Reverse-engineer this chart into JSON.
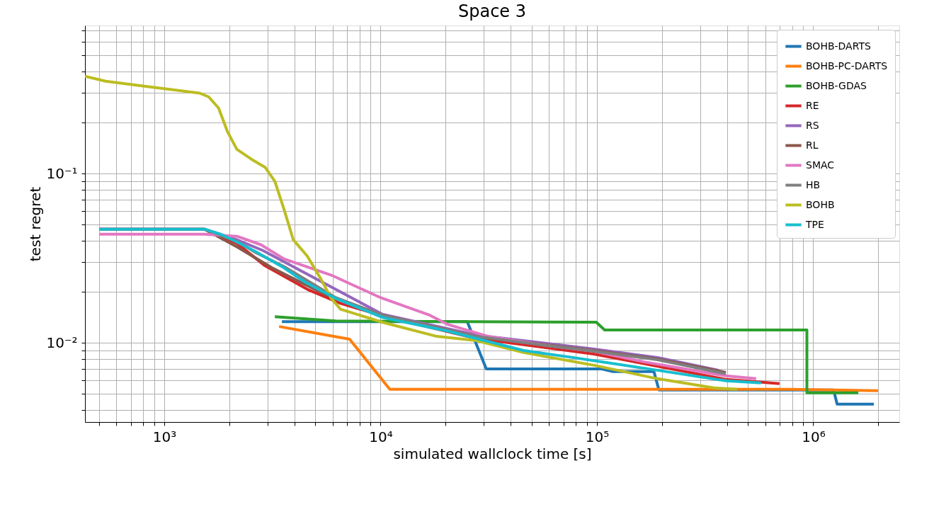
{
  "chart_data": {
    "type": "line",
    "title": "Space 3",
    "xlabel": "simulated wallclock time [s]",
    "ylabel": "test regret",
    "log": "xy",
    "grid": true,
    "legend": "top right",
    "marker": "none",
    "line_style": "solid",
    "xlim": [
      430,
      2500000
    ],
    "ylim": [
      0.0034,
      0.75
    ],
    "xticks": [
      {
        "value": 500,
        "label": null
      },
      {
        "value": 600,
        "label": null
      },
      {
        "value": 700,
        "label": null
      },
      {
        "value": 800,
        "label": null
      },
      {
        "value": 900,
        "label": null
      },
      {
        "value": 1000,
        "label": "10³"
      },
      {
        "value": 2000,
        "label": null
      },
      {
        "value": 3000,
        "label": null
      },
      {
        "value": 4000,
        "label": null
      },
      {
        "value": 5000,
        "label": null
      },
      {
        "value": 6000,
        "label": null
      },
      {
        "value": 7000,
        "label": null
      },
      {
        "value": 8000,
        "label": null
      },
      {
        "value": 9000,
        "label": null
      },
      {
        "value": 10000,
        "label": "10⁴"
      },
      {
        "value": 20000,
        "label": null
      },
      {
        "value": 30000,
        "label": null
      },
      {
        "value": 40000,
        "label": null
      },
      {
        "value": 50000,
        "label": null
      },
      {
        "value": 60000,
        "label": null
      },
      {
        "value": 70000,
        "label": null
      },
      {
        "value": 80000,
        "label": null
      },
      {
        "value": 90000,
        "label": null
      },
      {
        "value": 100000,
        "label": "10⁵"
      },
      {
        "value": 200000,
        "label": null
      },
      {
        "value": 300000,
        "label": null
      },
      {
        "value": 400000,
        "label": null
      },
      {
        "value": 500000,
        "label": null
      },
      {
        "value": 600000,
        "label": null
      },
      {
        "value": 700000,
        "label": null
      },
      {
        "value": 800000,
        "label": null
      },
      {
        "value": 900000,
        "label": null
      },
      {
        "value": 1000000,
        "label": "10⁶"
      },
      {
        "value": 2000000,
        "label": null
      }
    ],
    "yticks": [
      {
        "value": 0.004,
        "label": null
      },
      {
        "value": 0.005,
        "label": null
      },
      {
        "value": 0.006,
        "label": null
      },
      {
        "value": 0.007,
        "label": null
      },
      {
        "value": 0.008,
        "label": null
      },
      {
        "value": 0.009,
        "label": null
      },
      {
        "value": 0.01,
        "label": "10⁻²"
      },
      {
        "value": 0.02,
        "label": null
      },
      {
        "value": 0.03,
        "label": null
      },
      {
        "value": 0.04,
        "label": null
      },
      {
        "value": 0.05,
        "label": null
      },
      {
        "value": 0.06,
        "label": null
      },
      {
        "value": 0.07,
        "label": null
      },
      {
        "value": 0.08,
        "label": null
      },
      {
        "value": 0.09,
        "label": null
      },
      {
        "value": 0.1,
        "label": "10⁻¹"
      },
      {
        "value": 0.2,
        "label": null
      },
      {
        "value": 0.3,
        "label": null
      },
      {
        "value": 0.4,
        "label": null
      },
      {
        "value": 0.5,
        "label": null
      },
      {
        "value": 0.6,
        "label": null
      },
      {
        "value": 0.7,
        "label": null
      }
    ],
    "series": [
      {
        "name": "BOHB-DARTS",
        "color": "#1f77b4",
        "x": [
          3499,
          25160,
          30800,
          104600,
          118800,
          183500,
          193500,
          1242000,
          1290000,
          1906000
        ],
        "values": [
          0.01334,
          0.01334,
          0.00701,
          0.00701,
          0.00675,
          0.00675,
          0.00526,
          0.00526,
          0.00434,
          0.00434
        ]
      },
      {
        "name": "BOHB-PC-DARTS",
        "color": "#ff7f0e",
        "x": [
          3396,
          7190,
          11030,
          775000,
          1994000
        ],
        "values": [
          0.01247,
          0.0105,
          0.00531,
          0.00531,
          0.00521
        ]
      },
      {
        "name": "BOHB-GDAS",
        "color": "#2ca02c",
        "x": [
          3246,
          6190,
          99300,
          108600,
          935000,
          935000,
          1616000
        ],
        "values": [
          0.01426,
          0.01346,
          0.01322,
          0.01189,
          0.01189,
          0.00506,
          0.00506
        ]
      },
      {
        "name": "RE",
        "color": "#d62728",
        "x": [
          501,
          1534,
          2166,
          2924,
          4585,
          6520,
          10230,
          27730,
          97000,
          394700,
          698000
        ],
        "values": [
          0.0469,
          0.0469,
          0.0387,
          0.0285,
          0.0207,
          0.0171,
          0.0144,
          0.0106,
          0.00858,
          0.00607,
          0.00573
        ]
      },
      {
        "name": "RS",
        "color": "#9467bd",
        "x": [
          501,
          1534,
          2166,
          2858,
          10230,
          27730,
          97000,
          190600,
          365000
        ],
        "values": [
          0.0469,
          0.0469,
          0.0406,
          0.0351,
          0.0147,
          0.0111,
          0.00917,
          0.00818,
          0.00688
        ]
      },
      {
        "name": "RL",
        "color": "#8c564b",
        "x": [
          501,
          1534,
          2166,
          3150,
          4064,
          5612,
          10230,
          27730,
          97000,
          190600,
          394700
        ],
        "values": [
          0.0469,
          0.0469,
          0.0369,
          0.0277,
          0.0235,
          0.0192,
          0.01454,
          0.0109,
          0.009,
          0.00802,
          0.00668
        ]
      },
      {
        "name": "SMAC",
        "color": "#e377c2",
        "x": [
          501,
          1534,
          2166,
          2795,
          3580,
          5916,
          9700,
          10230,
          16900,
          20540,
          31500,
          58700,
          97000,
          164000,
          394700,
          544700
        ],
        "values": [
          0.0438,
          0.0438,
          0.0426,
          0.038,
          0.0313,
          0.0251,
          0.0188,
          0.0183,
          0.01454,
          0.0128,
          0.0109,
          0.00962,
          0.00891,
          0.00772,
          0.00637,
          0.00613
        ]
      },
      {
        "name": "HB",
        "color": "#7f7f7f",
        "x": [
          501,
          1534,
          2166,
          2652,
          3580,
          6190,
          10230,
          27730,
          58700,
          97000,
          190600,
          394700
        ],
        "values": [
          0.0469,
          0.0469,
          0.0398,
          0.0341,
          0.0282,
          0.0185,
          0.01454,
          0.0109,
          0.00962,
          0.00891,
          0.00794,
          0.00656
        ]
      },
      {
        "name": "BOHB",
        "color": "#bcbd22",
        "x": [
          430,
          537,
          861,
          1455,
          1604,
          1782,
          1963,
          2166,
          2517,
          2924,
          3246,
          3580,
          3948,
          4585,
          5326,
          5916,
          6520,
          10230,
          18230,
          27730,
          45850,
          97000,
          190600,
          347400,
          444800
        ],
        "values": [
          0.376,
          0.351,
          0.325,
          0.299,
          0.284,
          0.244,
          0.176,
          0.139,
          0.122,
          0.109,
          0.09,
          0.0613,
          0.0406,
          0.0325,
          0.0235,
          0.0183,
          0.0158,
          0.0132,
          0.0109,
          0.0103,
          0.00875,
          0.00736,
          0.00613,
          0.00541,
          0.00531
        ]
      },
      {
        "name": "TPE",
        "color": "#17becf",
        "x": [
          501,
          1534,
          1822,
          2166,
          2652,
          3580,
          4481,
          6190,
          10230,
          20540,
          27730,
          45850,
          77500,
          190600,
          394700,
          573900
        ],
        "values": [
          0.0469,
          0.0469,
          0.0438,
          0.0394,
          0.0345,
          0.0277,
          0.0228,
          0.0183,
          0.0141,
          0.0117,
          0.0106,
          0.009,
          0.00818,
          0.00688,
          0.00596,
          0.00579
        ]
      }
    ]
  }
}
